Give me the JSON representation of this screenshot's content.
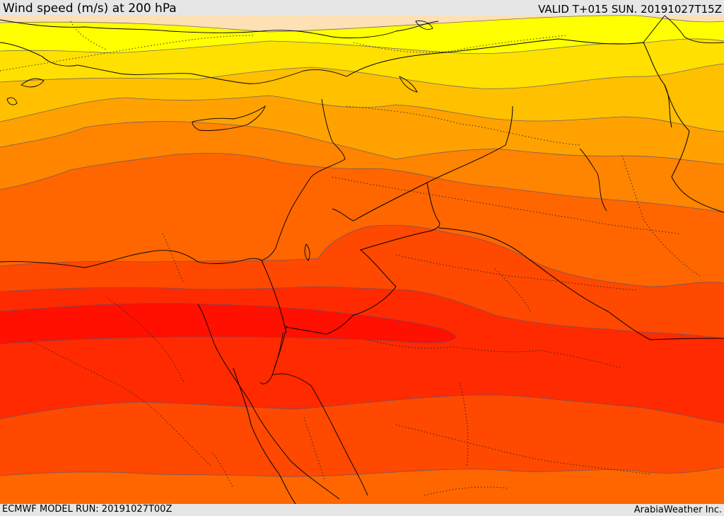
{
  "header": {
    "title": "Wind speed (m/s) at 200 hPa",
    "valid_time": "VALID T+015 SUN. 20191027T15Z"
  },
  "footer": {
    "model_run": "ECMWF MODEL RUN: 20191027T00Z",
    "credit": "ArabiaWeather Inc."
  },
  "map": {
    "variable": "wind speed",
    "units": "m/s",
    "pressure_level": "200 hPa",
    "shading_colors": [
      "#fde0b4",
      "#ffff00",
      "#ffe000",
      "#ffc000",
      "#ffa200",
      "#ff8400",
      "#ff6600",
      "#ff4800",
      "#ff2a00",
      "#ff1000"
    ]
  }
}
